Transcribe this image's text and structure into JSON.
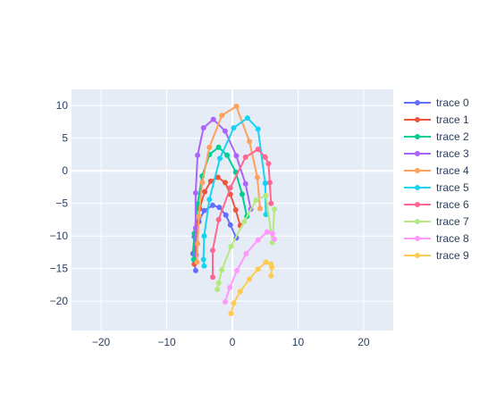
{
  "chart_data": {
    "type": "line",
    "mode": "lines+markers",
    "xlim": [
      -24.5,
      24.5
    ],
    "ylim": [
      -24.5,
      12.5
    ],
    "x_ticks": [
      -20,
      -10,
      0,
      10,
      20
    ],
    "y_ticks": [
      -20,
      -15,
      -10,
      -5,
      0,
      5,
      10
    ],
    "x_tick_labels": [
      "−20",
      "−10",
      "0",
      "10",
      "20"
    ],
    "y_tick_labels": [
      "−20",
      "−15",
      "−10",
      "−5",
      "0",
      "5",
      "10"
    ],
    "grid": true,
    "legend_position": "right",
    "plot_background": "#E5ECF6",
    "series": [
      {
        "name": "trace 0",
        "color": "#636EFA",
        "x": [
          0.6,
          -0.3,
          -1.0,
          -2.0,
          -3.0,
          -4.3,
          -5.1,
          -5.8,
          -6.0,
          -5.6
        ],
        "y": [
          -10.3,
          -8.3,
          -6.8,
          -5.6,
          -5.3,
          -6.1,
          -7.8,
          -10.1,
          -12.7,
          -15.3
        ]
      },
      {
        "name": "trace 1",
        "color": "#EF553B",
        "x": [
          1.2,
          0.5,
          -0.3,
          -1.1,
          -2.2,
          -3.3,
          -4.2,
          -5.0,
          -5.5,
          -5.8
        ],
        "y": [
          -8.4,
          -6.0,
          -3.6,
          -1.8,
          -1.0,
          -1.6,
          -3.2,
          -5.8,
          -9.3,
          -14.3
        ]
      },
      {
        "name": "trace 2",
        "color": "#00CC96",
        "x": [
          2.2,
          1.5,
          0.5,
          -0.8,
          -2.1,
          -3.5,
          -4.6,
          -5.3,
          -5.8,
          -5.9
        ],
        "y": [
          -7.0,
          -3.6,
          -0.2,
          2.4,
          3.6,
          2.5,
          -0.8,
          -5.1,
          -9.6,
          -13.6
        ]
      },
      {
        "name": "trace 3",
        "color": "#AB63FA",
        "x": [
          2.8,
          2.0,
          0.6,
          -1.1,
          -2.9,
          -4.4,
          -5.3,
          -5.6,
          -5.6,
          -5.5
        ],
        "y": [
          -5.9,
          -2.0,
          2.3,
          6.1,
          7.9,
          6.6,
          2.4,
          -3.4,
          -8.8,
          -12.9
        ]
      },
      {
        "name": "trace 4",
        "color": "#FFA15A",
        "x": [
          4.2,
          3.8,
          2.6,
          0.6,
          -1.6,
          -3.5,
          -4.6,
          -5.1,
          -5.3,
          -5.4
        ],
        "y": [
          -5.8,
          -1.0,
          4.5,
          9.9,
          8.5,
          3.6,
          -1.8,
          -7.0,
          -11.2,
          -14.0
        ]
      },
      {
        "name": "trace 5",
        "color": "#19D3F3",
        "x": [
          5.1,
          5.0,
          3.9,
          2.3,
          0.2,
          -1.9,
          -3.5,
          -4.3,
          -4.4,
          -4.3
        ],
        "y": [
          -6.7,
          -1.9,
          6.4,
          8.1,
          6.6,
          1.9,
          -4.4,
          -10.0,
          -13.6,
          -14.6
        ]
      },
      {
        "name": "trace 6",
        "color": "#FF6692",
        "x": [
          5.9,
          5.7,
          5.5,
          5.0,
          3.9,
          2.0,
          -0.3,
          -2.1,
          -3.0,
          -3.0
        ],
        "y": [
          -5.0,
          -1.8,
          1.1,
          2.1,
          3.3,
          2.1,
          -2.6,
          -7.5,
          -12.2,
          -16.3
        ]
      },
      {
        "name": "trace 7",
        "color": "#B6E880",
        "x": [
          6.4,
          6.1,
          5.1,
          3.6,
          1.8,
          -0.2,
          -1.6,
          -2.1,
          -2.3
        ],
        "y": [
          -5.9,
          -11.0,
          -3.8,
          -4.5,
          -7.8,
          -11.6,
          -15.2,
          -17.2,
          -18.2
        ]
      },
      {
        "name": "trace 8",
        "color": "#FF97FF",
        "x": [
          6.4,
          6.1,
          5.3,
          3.9,
          2.1,
          0.7,
          -0.4,
          -1.1
        ],
        "y": [
          -10.5,
          -9.6,
          -9.4,
          -10.6,
          -12.7,
          -15.3,
          -17.9,
          -20.1
        ]
      },
      {
        "name": "trace 9",
        "color": "#FECB52",
        "x": [
          5.9,
          6.0,
          5.9,
          5.1,
          3.9,
          2.6,
          1.2,
          0.2,
          -0.2
        ],
        "y": [
          -16.1,
          -14.8,
          -14.3,
          -14.0,
          -15.1,
          -16.6,
          -18.5,
          -20.3,
          -21.9
        ]
      }
    ]
  }
}
